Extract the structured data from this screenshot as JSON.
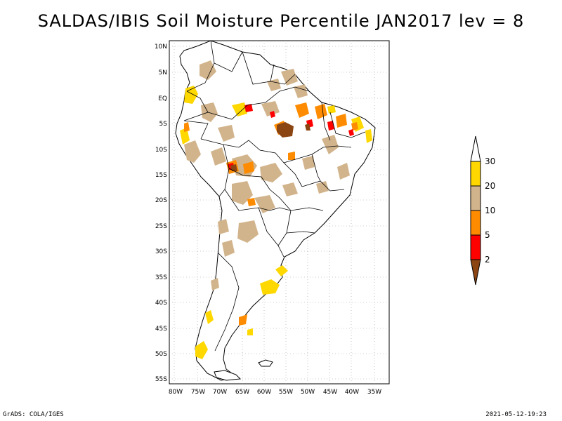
{
  "title": "SALDAS/IBIS Soil Moisture Percentile JAN2017 lev = 8",
  "footer_left": "GrADS: COLA/IGES",
  "footer_right": "2021-05-12-19:23",
  "lat_ticks": [
    "10N",
    "5N",
    "EQ",
    "5S",
    "10S",
    "15S",
    "20S",
    "25S",
    "30S",
    "35S",
    "40S",
    "45S",
    "50S",
    "55S"
  ],
  "lon_ticks": [
    "80W",
    "75W",
    "70W",
    "65W",
    "60W",
    "55W",
    "50W",
    "45W",
    "40W",
    "35W"
  ],
  "legend": {
    "labels": [
      "30",
      "20",
      "10",
      "5",
      "2"
    ],
    "colors": {
      "over30": "#ffffff",
      "20-30": "#ffd800",
      "10-20": "#d2b48c",
      "5-10": "#ff8c00",
      "2-5": "#ff0000",
      "under2": "#8b4513"
    }
  }
}
